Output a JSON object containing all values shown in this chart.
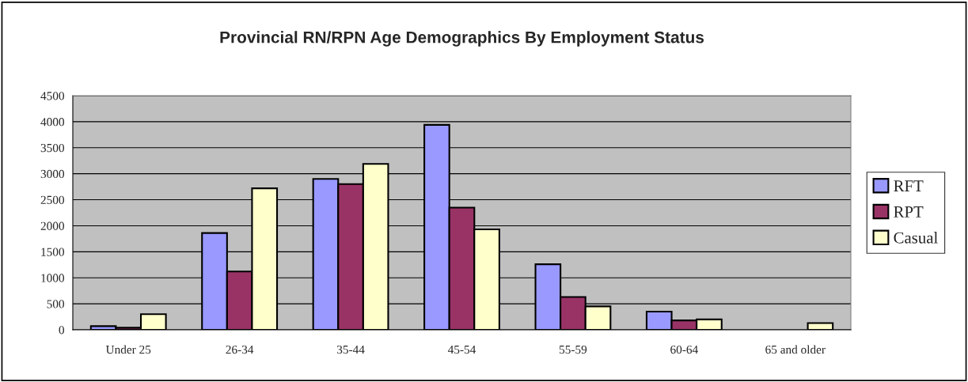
{
  "chart_data": {
    "type": "bar",
    "title": "Provincial RN/RPN Age Demographics By Employment Status",
    "categories": [
      "Under 25",
      "26-34",
      "35-44",
      "45-54",
      "55-59",
      "60-64",
      "65 and older"
    ],
    "series": [
      {
        "name": "RFT",
        "color": "#9999ff",
        "values": [
          70,
          1860,
          2900,
          3940,
          1260,
          350,
          null
        ]
      },
      {
        "name": "RPT",
        "color": "#993366",
        "values": [
          40,
          1120,
          2800,
          2350,
          630,
          180,
          null
        ]
      },
      {
        "name": "Casual",
        "color": "#ffffcc",
        "values": [
          300,
          2720,
          3190,
          1930,
          450,
          200,
          130
        ]
      }
    ],
    "ylim": [
      0,
      4500
    ],
    "yticks": [
      0,
      500,
      1000,
      1500,
      2000,
      2500,
      3000,
      3500,
      4000,
      4500
    ],
    "grid": "y",
    "legend": "right"
  }
}
